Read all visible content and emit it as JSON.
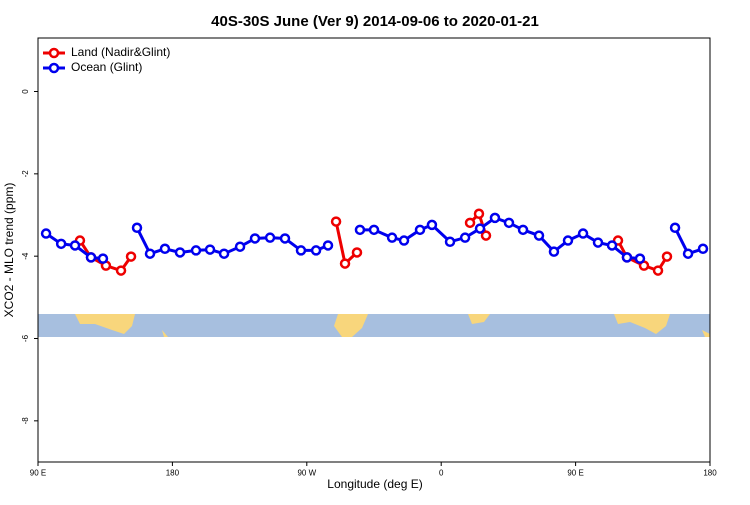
{
  "chart_data": {
    "type": "line",
    "title": "40S-30S June (Ver 9)   2014-09-06 to 2020-01-21",
    "xlabel": "Longitude (deg E)",
    "ylabel": "XCO2 - MLO trend (ppm)",
    "xlim": [
      90,
      540
    ],
    "ylim": [
      -9,
      1.3
    ],
    "xticks": [
      {
        "value": 90,
        "label": "90 E"
      },
      {
        "value": 180,
        "label": "180"
      },
      {
        "value": 270,
        "label": "90 W"
      },
      {
        "value": 360,
        "label": "0"
      },
      {
        "value": 450,
        "label": "90 E"
      },
      {
        "value": 540,
        "label": "180"
      }
    ],
    "yticks": [
      0,
      -2,
      -4,
      -6,
      -8
    ],
    "legend": "top-left",
    "series": [
      {
        "name": "Land (Nadir&Glint)",
        "color": "#ee0000",
        "x": [
          118.1,
          125.5,
          135.5,
          145.6,
          152.3,
          null,
          289.6,
          295.6,
          303.6,
          null,
          379.3,
          385.3,
          390,
          null,
          478.4,
          484.4,
          495.8,
          505.2,
          511.2
        ],
        "values": [
          -3.62,
          -4.03,
          -4.23,
          -4.35,
          -4.01,
          null,
          -3.16,
          -4.18,
          -3.91,
          null,
          -3.19,
          -2.97,
          -3.5,
          null,
          -3.62,
          -4.03,
          -4.23,
          -4.35,
          -4.01
        ]
      },
      {
        "name": "Ocean (Glint)",
        "color": "#0000ee",
        "x": [
          95.4,
          105.5,
          114.8,
          125.5,
          133.5,
          null,
          156.3,
          165,
          175,
          185.1,
          195.8,
          205.2,
          214.6,
          225.3,
          235.3,
          245.4,
          255.4,
          266.1,
          276.2,
          284.2,
          null,
          305.6,
          315,
          327.1,
          335.1,
          345.8,
          353.8,
          365.9,
          376,
          386,
          396,
          405.4,
          414.8,
          425.5,
          435.5,
          444.9,
          455,
          465,
          474.4,
          484.4,
          493.1,
          null,
          516.6,
          525.3,
          535.3
        ],
        "values": [
          -3.45,
          -3.7,
          -3.74,
          -4.03,
          -4.06,
          null,
          -3.31,
          -3.94,
          -3.82,
          -3.91,
          -3.86,
          -3.84,
          -3.94,
          -3.77,
          -3.57,
          -3.55,
          -3.57,
          -3.86,
          -3.86,
          -3.74,
          null,
          -3.36,
          -3.36,
          -3.55,
          -3.62,
          -3.36,
          -3.24,
          -3.65,
          -3.55,
          -3.33,
          -3.07,
          -3.19,
          -3.36,
          -3.5,
          -3.89,
          -3.62,
          -3.45,
          -3.67,
          -3.74,
          -4.03,
          -4.06,
          null,
          -3.31,
          -3.94,
          -3.82
        ]
      }
    ]
  }
}
